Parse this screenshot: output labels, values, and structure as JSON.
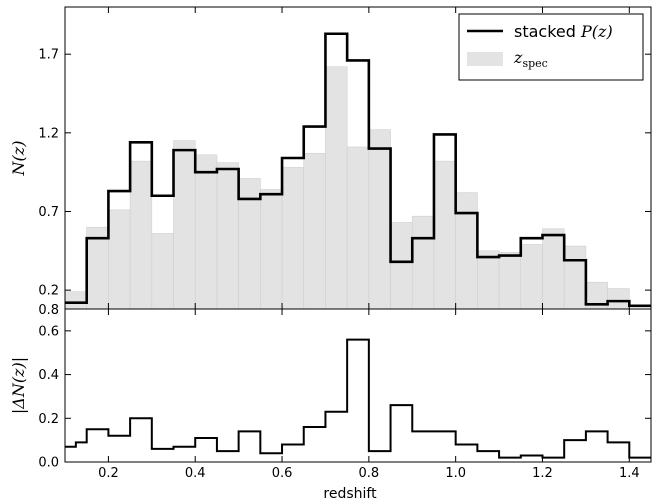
{
  "chart_data": [
    {
      "type": "bar",
      "panel": "top",
      "ylabel": "N(z)",
      "ylim": [
        0.08,
        2.0
      ],
      "yticks": [
        0.2,
        0.7,
        1.2,
        1.7
      ],
      "yticklabels": [
        "0.2",
        "0.7",
        "1.2",
        "1.7"
      ],
      "bottom_label": "0.8",
      "xlim": [
        0.1,
        1.45
      ],
      "bin_edges": [
        0.1,
        0.15,
        0.2,
        0.25,
        0.3,
        0.35,
        0.4,
        0.45,
        0.5,
        0.55,
        0.6,
        0.65,
        0.7,
        0.75,
        0.8,
        0.85,
        0.9,
        0.95,
        1.0,
        1.05,
        1.1,
        1.15,
        1.2,
        1.25,
        1.3,
        1.35,
        1.4,
        1.45
      ],
      "series": [
        {
          "name": "stacked P(z)",
          "legend_plain": "stacked ",
          "legend_math": "P(z)",
          "style": "step",
          "color": "#000000",
          "values": [
            0.12,
            0.53,
            0.83,
            1.14,
            0.8,
            1.09,
            0.95,
            0.97,
            0.78,
            0.81,
            1.04,
            1.24,
            1.83,
            1.66,
            1.1,
            0.38,
            0.53,
            1.19,
            0.69,
            0.41,
            0.42,
            0.53,
            0.55,
            0.39,
            0.11,
            0.13,
            0.1
          ]
        },
        {
          "name": "z_spec",
          "legend_main": "z",
          "legend_sub": "spec",
          "style": "bar",
          "color": "#e3e3e3",
          "values": [
            0.19,
            0.6,
            0.71,
            1.02,
            0.56,
            1.15,
            1.06,
            1.01,
            0.91,
            0.84,
            0.98,
            1.07,
            1.62,
            1.11,
            1.22,
            0.63,
            0.67,
            1.02,
            0.82,
            0.45,
            0.44,
            0.49,
            0.59,
            0.48,
            0.25,
            0.21,
            0.08
          ]
        }
      ],
      "legend": "top-right",
      "grid": false
    },
    {
      "type": "line",
      "panel": "bottom",
      "style": "step",
      "xlabel": "redshift",
      "ylabel": "|ΔN(z)|",
      "xlim": [
        0.1,
        1.45
      ],
      "ylim": [
        0.0,
        0.7
      ],
      "xticks": [
        0.2,
        0.4,
        0.6,
        0.8,
        1.0,
        1.2,
        1.4
      ],
      "xticklabels": [
        "0.2",
        "0.4",
        "0.6",
        "0.8",
        "1.0",
        "1.2",
        "1.4"
      ],
      "yticks": [
        0.0,
        0.2,
        0.4,
        0.6
      ],
      "yticklabels": [
        "0.0",
        "0.2",
        "0.4",
        "0.6"
      ],
      "bin_edges": [
        0.1,
        0.125,
        0.15,
        0.2,
        0.25,
        0.3,
        0.35,
        0.4,
        0.45,
        0.5,
        0.55,
        0.6,
        0.65,
        0.7,
        0.75,
        0.8,
        0.85,
        0.9,
        0.95,
        1.0,
        1.05,
        1.1,
        1.15,
        1.2,
        1.25,
        1.3,
        1.35,
        1.4,
        1.45
      ],
      "values": [
        0.07,
        0.09,
        0.15,
        0.12,
        0.2,
        0.06,
        0.07,
        0.11,
        0.05,
        0.14,
        0.04,
        0.08,
        0.16,
        0.23,
        0.56,
        0.05,
        0.26,
        0.14,
        0.14,
        0.08,
        0.05,
        0.02,
        0.03,
        0.02,
        0.1,
        0.14,
        0.09,
        0.02
      ],
      "color": "#000000",
      "grid": false
    }
  ]
}
